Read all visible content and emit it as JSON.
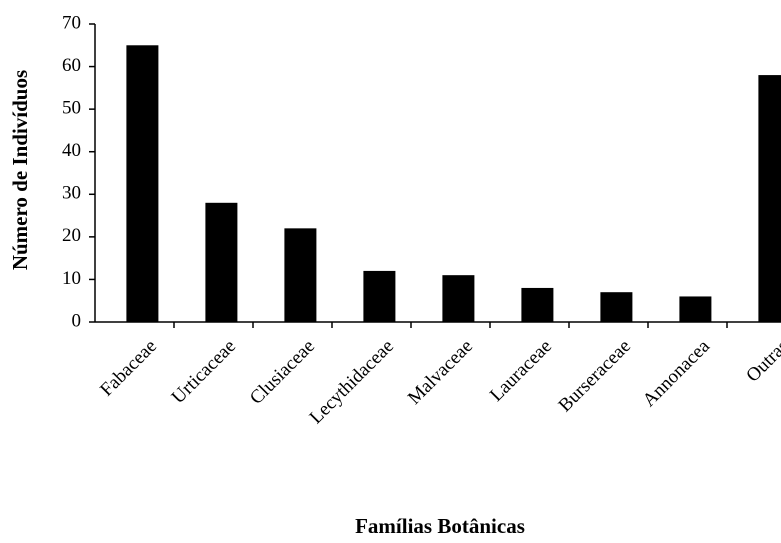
{
  "chart_data": {
    "type": "bar",
    "xlabel": "Famílias Botânicas",
    "ylabel": "Número de Indivíduos",
    "categories": [
      "Fabaceae",
      "Urticaceae",
      "Clusiaceae",
      "Lecythidaceae",
      "Malvaceae",
      "Lauraceae",
      "Burseraceae",
      "Annonacea",
      "Outras"
    ],
    "values": [
      65,
      28,
      22,
      12,
      11,
      8,
      7,
      6,
      58
    ],
    "color": "#000000",
    "ylim": [
      0,
      70
    ],
    "yticks": [
      0,
      10,
      20,
      30,
      40,
      50,
      60,
      70
    ],
    "grid": false
  }
}
